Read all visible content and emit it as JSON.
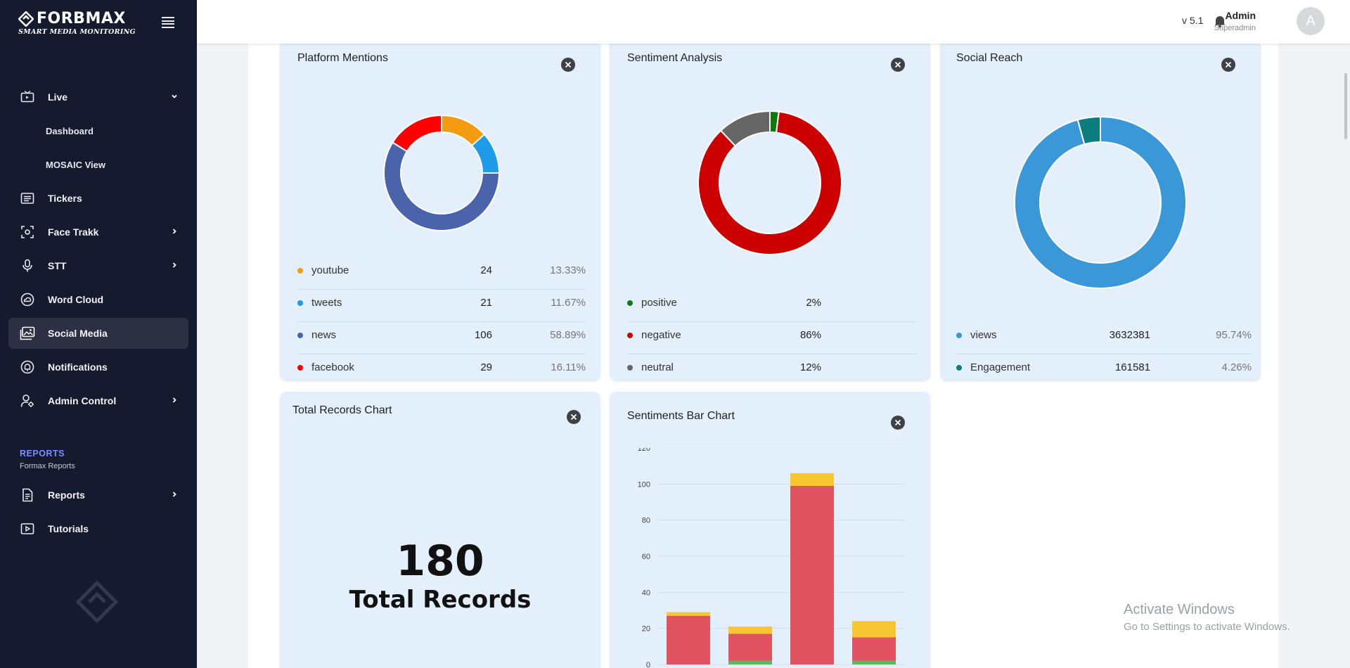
{
  "brand": {
    "name": "FORBMAX",
    "tagline": "SMART MEDIA MONITORING"
  },
  "sidebar": {
    "items": [
      {
        "label": "Live",
        "icon": "tv-icon",
        "chevron": "down"
      },
      {
        "label": "Dashboard",
        "sub": true
      },
      {
        "label": "MOSAIC View",
        "sub": true
      },
      {
        "label": "Tickers",
        "icon": "ticker-icon"
      },
      {
        "label": "Face Trakk",
        "icon": "face-scan-icon",
        "chevron": "right"
      },
      {
        "label": "STT",
        "icon": "microphone-icon",
        "chevron": "right"
      },
      {
        "label": "Word Cloud",
        "icon": "cloud-icon"
      },
      {
        "label": "Social Media",
        "icon": "gallery-icon",
        "active": true
      },
      {
        "label": "Notifications",
        "icon": "bell-outline-icon"
      },
      {
        "label": "Admin Control",
        "icon": "user-settings-icon",
        "chevron": "right"
      }
    ],
    "section_title": "REPORTS",
    "section_subtitle": "Formax Reports",
    "report_items": [
      {
        "label": "Reports",
        "icon": "document-icon",
        "chevron": "right"
      },
      {
        "label": "Tutorials",
        "icon": "play-icon"
      }
    ]
  },
  "header": {
    "version": "v 5.1",
    "user_name": "Admin",
    "user_role": "Superadmin",
    "avatar_letter": "A"
  },
  "cards": {
    "platform": {
      "title": "Platform Mentions",
      "rows": [
        {
          "label": "youtube",
          "count": "24",
          "percent": "13.33%",
          "color": "#f39c12"
        },
        {
          "label": "tweets",
          "count": "21",
          "percent": "11.67%",
          "color": "#1e9be9"
        },
        {
          "label": "news",
          "count": "106",
          "percent": "58.89%",
          "color": "#4a63ab"
        },
        {
          "label": "facebook",
          "count": "29",
          "percent": "16.11%",
          "color": "#ff0000"
        }
      ]
    },
    "sentiment": {
      "title": "Sentiment Analysis",
      "rows": [
        {
          "label": "positive",
          "percent": "2%",
          "color": "#0e7a0e"
        },
        {
          "label": "negative",
          "percent": "86%",
          "color": "#cc0000"
        },
        {
          "label": "neutral",
          "percent": "12%",
          "color": "#666666"
        }
      ]
    },
    "reach": {
      "title": "Social Reach",
      "rows": [
        {
          "label": "views",
          "count": "3632381",
          "percent": "95.74%",
          "color": "#3a97d8"
        },
        {
          "label": "Engagement",
          "count": "161581",
          "percent": "4.26%",
          "color": "#0b7d7d"
        }
      ]
    },
    "total": {
      "title": "Total Records Chart",
      "number": "180",
      "caption": "Total Records"
    },
    "bar": {
      "title": "Sentiments Bar Chart"
    }
  },
  "chart_data": [
    {
      "type": "pie",
      "title": "Platform Mentions",
      "categories": [
        "youtube",
        "tweets",
        "news",
        "facebook"
      ],
      "values": [
        24,
        21,
        106,
        29
      ],
      "colors": [
        "#f39c12",
        "#1e9be9",
        "#4a63ab",
        "#ff0000"
      ]
    },
    {
      "type": "pie",
      "title": "Sentiment Analysis",
      "categories": [
        "positive",
        "negative",
        "neutral"
      ],
      "values": [
        2,
        86,
        12
      ],
      "colors": [
        "#0e7a0e",
        "#cc0000",
        "#666666"
      ]
    },
    {
      "type": "pie",
      "title": "Social Reach",
      "categories": [
        "views",
        "Engagement"
      ],
      "values": [
        3632381,
        161581
      ],
      "colors": [
        "#3a97d8",
        "#0b7d7d"
      ]
    },
    {
      "type": "bar",
      "title": "Sentiments Bar Chart",
      "categories": [
        "",
        "",
        "",
        ""
      ],
      "stacked": true,
      "series": [
        {
          "values": [
            0,
            2,
            0,
            2
          ],
          "color": "#5cb85c"
        },
        {
          "values": [
            27,
            15,
            99,
            13
          ],
          "color": "#e05260"
        },
        {
          "values": [
            2,
            4,
            7,
            9
          ],
          "color": "#f8c630"
        }
      ],
      "ylim": [
        0,
        120
      ],
      "yticks": [
        "0",
        "20",
        "40",
        "60",
        "80",
        "100",
        "120"
      ],
      "grid": true
    }
  ],
  "activate_windows": {
    "line1": "Activate Windows",
    "line2": "Go to Settings to activate Windows."
  }
}
